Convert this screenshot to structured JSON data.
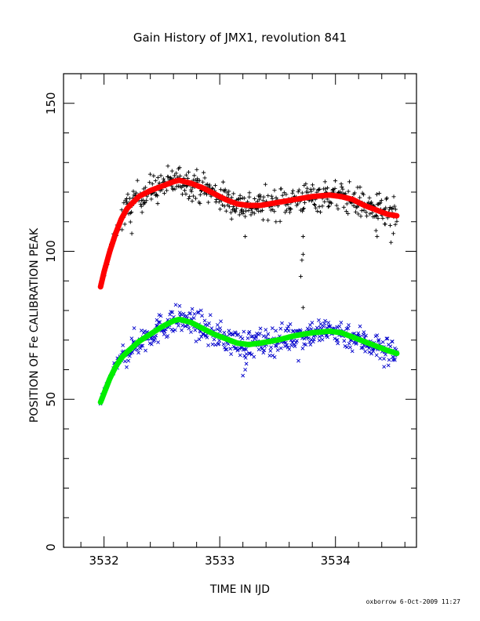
{
  "chart_data": {
    "type": "scatter",
    "title": "Gain History of JMX1, revolution 841",
    "xlabel": "TIME IN IJD",
    "ylabel": "POSITION OF Fe CALIBRATION PEAK",
    "xlim": [
      3531.65,
      3534.7
    ],
    "ylim": [
      0,
      160
    ],
    "x_ticks": [
      3532,
      3533,
      3534
    ],
    "x_tick_labels": [
      "3532",
      "3533",
      "3534"
    ],
    "y_ticks": [
      0,
      50,
      100,
      150
    ],
    "y_tick_labels": [
      "0",
      "50",
      "100",
      "150"
    ],
    "grid": false,
    "legend": "none",
    "series": [
      {
        "marker": "plus",
        "color": "#000000",
        "x_range": [
          3531.97,
          3534.53
        ],
        "trend": {
          "x": [
            3531.97,
            3532.0,
            3532.05,
            3532.1,
            3532.15,
            3532.2,
            3532.3,
            3532.4,
            3532.5,
            3532.6,
            3532.65,
            3532.75,
            3532.85,
            3532.95,
            3533.05,
            3533.15,
            3533.25,
            3533.35,
            3533.5,
            3533.65,
            3533.8,
            3533.95,
            3534.05,
            3534.15,
            3534.25,
            3534.35,
            3534.45,
            3534.53
          ],
          "y": [
            88,
            93,
            100,
            106,
            111,
            114.5,
            118.5,
            120.5,
            122,
            123.5,
            124,
            123,
            121.5,
            119.5,
            117.5,
            116,
            115.5,
            115.5,
            116.5,
            117.5,
            118.5,
            119,
            118.5,
            117.5,
            115.5,
            114,
            112.5,
            112
          ]
        },
        "outliers": [
          {
            "x": 3532.24,
            "y": 106
          },
          {
            "x": 3533.22,
            "y": 105
          },
          {
            "x": 3533.72,
            "y": 105
          },
          {
            "x": 3533.72,
            "y": 99
          },
          {
            "x": 3533.71,
            "y": 97
          },
          {
            "x": 3533.7,
            "y": 91.5
          },
          {
            "x": 3533.72,
            "y": 81
          },
          {
            "x": 3534.35,
            "y": 107
          },
          {
            "x": 3534.36,
            "y": 105
          },
          {
            "x": 3534.48,
            "y": 103
          },
          {
            "x": 3534.5,
            "y": 106
          }
        ]
      },
      {
        "marker": "cross",
        "color": "#0000cc",
        "x_range": [
          3531.97,
          3534.53
        ],
        "trend": {
          "x": [
            3531.97,
            3532.0,
            3532.05,
            3532.1,
            3532.15,
            3532.2,
            3532.3,
            3532.4,
            3532.5,
            3532.6,
            3532.65,
            3532.75,
            3532.85,
            3532.95,
            3533.05,
            3533.15,
            3533.25,
            3533.35,
            3533.5,
            3533.65,
            3533.8,
            3533.95,
            3534.05,
            3534.15,
            3534.25,
            3534.35,
            3534.45,
            3534.53
          ],
          "y": [
            49,
            52,
            57,
            61,
            64,
            66,
            69.5,
            72,
            74.5,
            76.5,
            77,
            76,
            74,
            72,
            70.5,
            69,
            68.5,
            69,
            70,
            71.5,
            72.5,
            73,
            72.5,
            71,
            69.5,
            68,
            66.5,
            65.5
          ]
        },
        "outliers": [
          {
            "x": 3533.2,
            "y": 58
          },
          {
            "x": 3533.22,
            "y": 60
          },
          {
            "x": 3533.23,
            "y": 62
          },
          {
            "x": 3534.42,
            "y": 61
          },
          {
            "x": 3533.68,
            "y": 63
          }
        ]
      },
      {
        "role": "fit",
        "color": "#ff0000",
        "x": [
          3531.97,
          3532.0,
          3532.05,
          3532.1,
          3532.15,
          3532.2,
          3532.3,
          3532.4,
          3532.5,
          3532.6,
          3532.65,
          3532.75,
          3532.85,
          3532.95,
          3533.05,
          3533.15,
          3533.25,
          3533.35,
          3533.5,
          3533.65,
          3533.8,
          3533.95,
          3534.05,
          3534.15,
          3534.25,
          3534.35,
          3534.45,
          3534.53
        ],
        "y": [
          88,
          93,
          100,
          106,
          111,
          114.5,
          118.5,
          120.5,
          122,
          123.5,
          124,
          123,
          121.5,
          119.5,
          117.5,
          116,
          115.5,
          115.5,
          116.5,
          117.5,
          118.5,
          119,
          118.5,
          117.5,
          115.5,
          114,
          112.5,
          112
        ]
      },
      {
        "role": "fit",
        "color": "#00ee00",
        "x": [
          3531.97,
          3532.0,
          3532.05,
          3532.1,
          3532.15,
          3532.2,
          3532.3,
          3532.4,
          3532.5,
          3532.6,
          3532.65,
          3532.75,
          3532.85,
          3532.95,
          3533.05,
          3533.15,
          3533.25,
          3533.35,
          3533.5,
          3533.65,
          3533.8,
          3533.95,
          3534.05,
          3534.15,
          3534.25,
          3534.35,
          3534.45,
          3534.53
        ],
        "y": [
          49,
          52,
          57,
          61,
          64,
          66,
          69.5,
          72,
          74.5,
          76.5,
          77,
          76,
          74,
          72,
          70.5,
          69,
          68.5,
          69,
          70,
          71.5,
          72.5,
          73,
          72.5,
          71,
          69.5,
          68,
          66.5,
          65.5
        ]
      }
    ]
  },
  "footer": {
    "credit": "oxborrow  6-Oct-2009 11:27"
  }
}
